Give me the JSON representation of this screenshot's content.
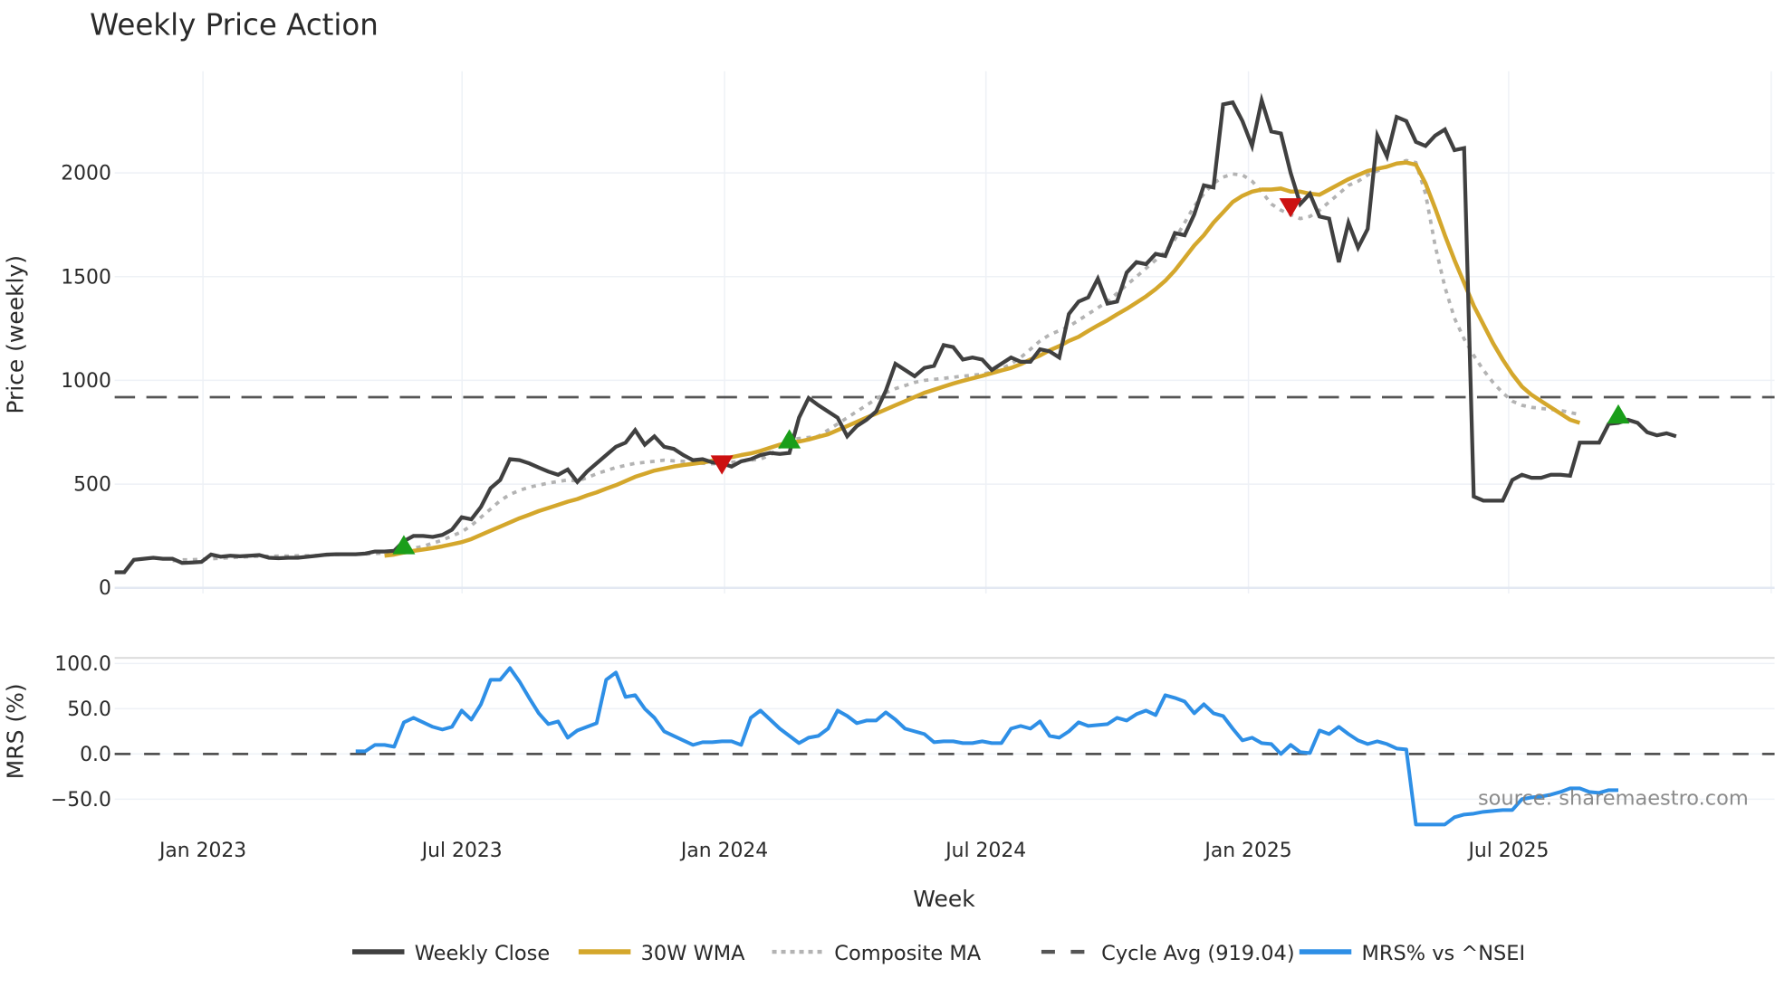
{
  "title": "Weekly Price Action",
  "watermark": "source: sharemaestro.com",
  "colors": {
    "weekly_close": "#404040",
    "wma30": "#d4a72c",
    "composite_ma": "#b3b3b3",
    "cycle_avg": "#555555",
    "mrs": "#2e8fe6",
    "buy_marker": "#1a9e1a",
    "sell_marker": "#cc1111"
  },
  "legend": [
    {
      "key": "weekly_close",
      "label": "Weekly Close",
      "style": "solid"
    },
    {
      "key": "wma30",
      "label": "30W WMA",
      "style": "solid"
    },
    {
      "key": "composite_ma",
      "label": "Composite MA",
      "style": "dot"
    },
    {
      "key": "cycle_avg",
      "label": "Cycle Avg (919.04)",
      "style": "dash"
    },
    {
      "key": "mrs",
      "label": "MRS% vs ^NSEI",
      "style": "solid"
    }
  ],
  "chart_data": [
    {
      "type": "line",
      "title": "Weekly Price Action",
      "xlabel": "Week",
      "ylabel": "Price (weekly)",
      "x_ticks": [
        "Jan 2023",
        "Jul 2023",
        "Jan 2024",
        "Jul 2024",
        "Jan 2025",
        "Jul 2025"
      ],
      "y_ticks": [
        0,
        500,
        1000,
        1500,
        2000
      ],
      "ylim": [
        0,
        2450
      ],
      "grid": true,
      "legend_position": "bottom",
      "x_start": "2022-11-14",
      "x_step": "1 week",
      "series": [
        {
          "name": "Weekly Close",
          "values": [
            75,
            75,
            135,
            140,
            145,
            140,
            140,
            120,
            122,
            125,
            160,
            150,
            155,
            152,
            155,
            158,
            145,
            143,
            145,
            145,
            150,
            155,
            160,
            162,
            162,
            162,
            165,
            175,
            175,
            178,
            225,
            250,
            250,
            245,
            255,
            280,
            340,
            330,
            390,
            480,
            520,
            620,
            615,
            600,
            580,
            560,
            545,
            570,
            510,
            560,
            600,
            640,
            680,
            700,
            760,
            690,
            730,
            680,
            670,
            640,
            615,
            620,
            605,
            600,
            585,
            610,
            620,
            640,
            650,
            645,
            650,
            820,
            915,
            880,
            850,
            820,
            730,
            780,
            810,
            850,
            950,
            1080,
            1050,
            1020,
            1060,
            1070,
            1170,
            1160,
            1100,
            1110,
            1100,
            1050,
            1080,
            1110,
            1090,
            1090,
            1150,
            1140,
            1110,
            1320,
            1380,
            1400,
            1490,
            1370,
            1380,
            1520,
            1570,
            1560,
            1610,
            1600,
            1710,
            1700,
            1800,
            1940,
            1930,
            2330,
            2340,
            2250,
            2130,
            2350,
            2200,
            2190,
            2000,
            1850,
            1900,
            1790,
            1780,
            1570,
            1760,
            1640,
            1730,
            2180,
            2080,
            2270,
            2250,
            2150,
            2130,
            2180,
            2210,
            2110,
            2120,
            440,
            420,
            420,
            420,
            520,
            545,
            530,
            530,
            545,
            545,
            540,
            700,
            700,
            700,
            790,
            795,
            810,
            795,
            750,
            735,
            745,
            730
          ]
        },
        {
          "name": "30W WMA",
          "values": [
            null,
            null,
            null,
            null,
            null,
            null,
            null,
            null,
            null,
            null,
            null,
            null,
            null,
            null,
            null,
            null,
            null,
            null,
            null,
            null,
            null,
            null,
            null,
            null,
            null,
            null,
            null,
            null,
            155,
            160,
            170,
            178,
            185,
            192,
            200,
            210,
            220,
            235,
            255,
            275,
            295,
            315,
            335,
            352,
            370,
            385,
            400,
            415,
            428,
            445,
            460,
            478,
            495,
            515,
            535,
            550,
            565,
            575,
            585,
            592,
            598,
            604,
            612,
            620,
            630,
            640,
            648,
            660,
            675,
            690,
            700,
            705,
            715,
            728,
            740,
            760,
            780,
            800,
            820,
            840,
            860,
            880,
            900,
            920,
            940,
            955,
            970,
            985,
            998,
            1010,
            1022,
            1035,
            1048,
            1060,
            1078,
            1100,
            1120,
            1145,
            1165,
            1190,
            1210,
            1238,
            1265,
            1290,
            1318,
            1345,
            1375,
            1405,
            1440,
            1480,
            1530,
            1590,
            1650,
            1700,
            1760,
            1810,
            1860,
            1890,
            1910,
            1920,
            1920,
            1925,
            1910,
            1910,
            1900,
            1895,
            1920,
            1945,
            1970,
            1990,
            2010,
            2020,
            2030,
            2045,
            2050,
            2040,
            1950,
            1830,
            1700,
            1580,
            1470,
            1360,
            1270,
            1180,
            1100,
            1030,
            970,
            930,
            900,
            870,
            840,
            810,
            795
          ]
        },
        {
          "name": "Composite MA",
          "values": [
            null,
            null,
            null,
            null,
            null,
            null,
            130,
            135,
            135,
            138,
            140,
            142,
            145,
            148,
            150,
            152,
            152,
            153,
            153,
            155,
            155,
            156,
            158,
            160,
            162,
            162,
            163,
            165,
            168,
            172,
            180,
            190,
            200,
            215,
            230,
            250,
            270,
            300,
            340,
            380,
            420,
            450,
            470,
            485,
            495,
            505,
            512,
            520,
            515,
            530,
            550,
            565,
            580,
            590,
            600,
            605,
            610,
            615,
            612,
            610,
            605,
            600,
            598,
            600,
            605,
            610,
            615,
            620,
            640,
            680,
            710,
            720,
            725,
            730,
            760,
            790,
            820,
            850,
            880,
            910,
            940,
            960,
            975,
            990,
            1000,
            1005,
            1010,
            1015,
            1020,
            1025,
            1030,
            1040,
            1055,
            1080,
            1110,
            1150,
            1190,
            1220,
            1240,
            1260,
            1290,
            1320,
            1350,
            1380,
            1420,
            1460,
            1500,
            1540,
            1580,
            1620,
            1680,
            1760,
            1840,
            1900,
            1950,
            1980,
            1995,
            1990,
            1960,
            1910,
            1850,
            1820,
            1800,
            1780,
            1790,
            1820,
            1860,
            1900,
            1940,
            1960,
            1990,
            2010,
            2030,
            2045,
            2060,
            2050,
            1900,
            1650,
            1450,
            1300,
            1200,
            1120,
            1050,
            990,
            940,
            900,
            880,
            870,
            865,
            860,
            855,
            845,
            835
          ]
        }
      ],
      "reference_lines": [
        {
          "name": "Cycle Avg",
          "value": 919.04,
          "style": "dash"
        }
      ],
      "markers": [
        {
          "type": "buy",
          "shape": "triangle-up",
          "x_index": 30,
          "y": 200
        },
        {
          "type": "sell",
          "shape": "triangle-down",
          "x_index": 63,
          "y": 600
        },
        {
          "type": "buy",
          "shape": "triangle-up",
          "x_index": 70,
          "y": 710
        },
        {
          "type": "sell",
          "shape": "triangle-down",
          "x_index": 122,
          "y": 1840
        },
        {
          "type": "buy",
          "shape": "triangle-up",
          "x_index": 156,
          "y": 830
        }
      ]
    },
    {
      "type": "line",
      "title": "",
      "xlabel": "Week",
      "ylabel": "MRS (%)",
      "x_ticks": [
        "Jan 2023",
        "Jul 2023",
        "Jan 2024",
        "Jul 2024",
        "Jan 2025",
        "Jul 2025"
      ],
      "y_ticks": [
        100.0,
        50.0,
        0.0,
        -50.0
      ],
      "ylim": [
        -75,
        105
      ],
      "reference_lines": [
        {
          "name": "zero",
          "value": 0,
          "style": "dash"
        }
      ],
      "series": [
        {
          "name": "MRS% vs ^NSEI",
          "values": [
            null,
            null,
            null,
            null,
            null,
            null,
            null,
            null,
            null,
            null,
            null,
            null,
            null,
            null,
            null,
            null,
            null,
            null,
            null,
            null,
            null,
            null,
            null,
            null,
            null,
            3,
            3,
            10,
            10,
            8,
            35,
            40,
            35,
            30,
            27,
            30,
            48,
            38,
            55,
            82,
            82,
            95,
            80,
            62,
            45,
            33,
            36,
            18,
            26,
            30,
            34,
            82,
            90,
            63,
            65,
            50,
            40,
            25,
            20,
            15,
            10,
            13,
            13,
            14,
            14,
            10,
            40,
            48,
            38,
            28,
            20,
            12,
            18,
            20,
            28,
            48,
            42,
            34,
            37,
            37,
            46,
            38,
            28,
            25,
            22,
            13,
            14,
            14,
            12,
            12,
            14,
            12,
            12,
            28,
            31,
            28,
            36,
            20,
            18,
            25,
            35,
            31,
            32,
            33,
            40,
            37,
            44,
            48,
            43,
            65,
            62,
            58,
            45,
            55,
            45,
            42,
            28,
            15,
            18,
            12,
            11,
            0,
            10,
            2,
            1,
            26,
            22,
            30,
            22,
            15,
            11,
            14,
            11,
            6,
            5,
            -78,
            -78,
            -78,
            -78,
            -70,
            -67,
            -66,
            -64,
            -63,
            -62,
            -62,
            -50,
            -48,
            -47,
            -45,
            -42,
            -38,
            -38,
            -42,
            -43,
            -40,
            -40
          ]
        }
      ]
    }
  ]
}
